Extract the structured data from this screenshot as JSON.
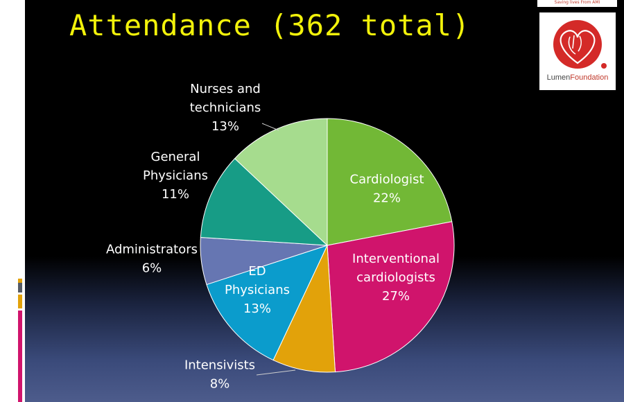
{
  "slide": {
    "title": "Attendance (362 total)"
  },
  "logo": {
    "tagline": "Saving lives From AMI",
    "name_part1": "Lumen",
    "name_part2": "Foundation"
  },
  "colors": {
    "title": "#f2f20a",
    "cardiologist": "#72b836",
    "interventional": "#d0146c",
    "intensivists": "#e2a20a",
    "ed_physicians": "#0b9ccc",
    "administrators": "#6676b2",
    "general_physicians": "#179c86",
    "nurses": "#a6dc8e"
  },
  "chart_data": {
    "type": "pie",
    "title": "",
    "start_angle_deg": 0,
    "direction": "clockwise",
    "slices": [
      {
        "name": "Cardiologist",
        "value": 22,
        "label_lines": [
          "Cardiologist",
          "22%"
        ],
        "color": "#72b836",
        "label_color": "#ffffff",
        "label_inside": true
      },
      {
        "name": "Interventional cardiologists",
        "value": 27,
        "label_lines": [
          "Interventional",
          "cardiologists",
          "27%"
        ],
        "color": "#d0146c",
        "label_color": "#ffffff",
        "label_inside": true
      },
      {
        "name": "Intensivists",
        "value": 8,
        "label_lines": [
          "Intensivists",
          "8%"
        ],
        "color": "#e2a20a",
        "label_color": "#ffffff",
        "label_inside": false
      },
      {
        "name": "ED Physicians",
        "value": 13,
        "label_lines": [
          "ED",
          "Physicians",
          "13%"
        ],
        "color": "#0b9ccc",
        "label_color": "#ffffff",
        "label_inside": true
      },
      {
        "name": "Administrators",
        "value": 6,
        "label_lines": [
          "Administrators",
          "6%"
        ],
        "color": "#6676b2",
        "label_color": "#ffffff",
        "label_inside": false
      },
      {
        "name": "General Physicians",
        "value": 11,
        "label_lines": [
          "General",
          "Physicians",
          "11%"
        ],
        "color": "#179c86",
        "label_color": "#ffffff",
        "label_inside": false
      },
      {
        "name": "Nurses and technicians",
        "value": 13,
        "label_lines": [
          "Nurses and",
          "technicians",
          "13%"
        ],
        "color": "#a6dc8e",
        "label_color": "#ffffff",
        "label_inside": false
      }
    ]
  }
}
